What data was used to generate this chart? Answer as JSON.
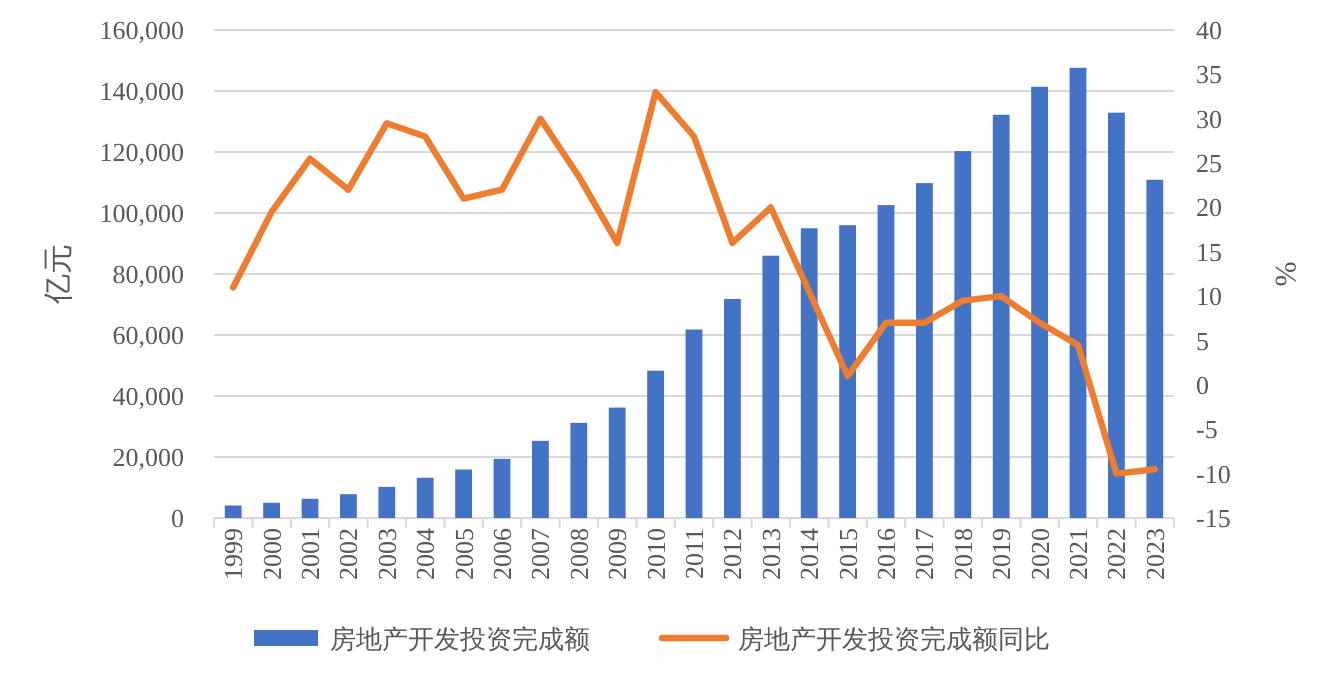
{
  "chart_data": {
    "type": "bar",
    "ylabel": "亿元",
    "y2label": "%",
    "categories": [
      "1999",
      "2000",
      "2001",
      "2002",
      "2003",
      "2004",
      "2005",
      "2006",
      "2007",
      "2008",
      "2009",
      "2010",
      "2011",
      "2012",
      "2013",
      "2014",
      "2015",
      "2016",
      "2017",
      "2018",
      "2019",
      "2020",
      "2021",
      "2022",
      "2023"
    ],
    "series": [
      {
        "name": "房地产开发投资完成额",
        "color": "#4472c4",
        "values": [
          4100,
          5000,
          6300,
          7800,
          10200,
          13200,
          15900,
          19400,
          25300,
          31200,
          36200,
          48300,
          61800,
          71800,
          86000,
          95000,
          96000,
          102600,
          109800,
          120300,
          132200,
          141400,
          147600,
          132900,
          110900
        ]
      },
      {
        "name": "房地产开发投资完成额同比",
        "type": "line",
        "axis": "y2",
        "color": "#ed7d31",
        "values": [
          11,
          19.5,
          25.5,
          22,
          29.5,
          28,
          21,
          22,
          30,
          23.5,
          16,
          33,
          28,
          16,
          20,
          10.5,
          1,
          7,
          7,
          9.5,
          10,
          7,
          4.5,
          -10,
          -9.5
        ]
      }
    ],
    "ylim": [
      0,
      160000
    ],
    "yticks": [
      {
        "value": 0,
        "label": "0"
      },
      {
        "value": 20000,
        "label": "20,000"
      },
      {
        "value": 40000,
        "label": "40,000"
      },
      {
        "value": 60000,
        "label": "60,000"
      },
      {
        "value": 80000,
        "label": "80,000"
      },
      {
        "value": 100000,
        "label": "100,000"
      },
      {
        "value": 120000,
        "label": "120,000"
      },
      {
        "value": 140000,
        "label": "140,000"
      },
      {
        "value": 160000,
        "label": "160,000"
      }
    ],
    "y2lim": [
      -15,
      40
    ],
    "y2ticks": [
      -15,
      -10,
      -5,
      0,
      5,
      10,
      15,
      20,
      25,
      30,
      35,
      40
    ],
    "grid": "y",
    "legend": "bottom"
  }
}
